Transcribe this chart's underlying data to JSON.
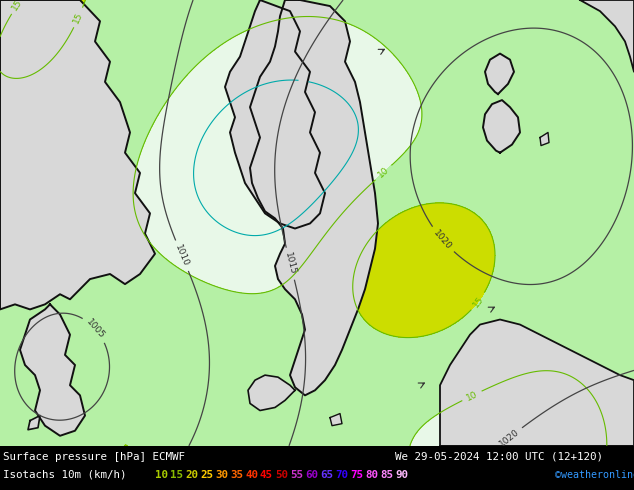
{
  "bg_color": "#b5f0a5",
  "land_color": "#d8d8d8",
  "sea_color": "#b5f0a5",
  "title_line1": "Surface pressure [hPa] ECMWF",
  "title_date": "We 29-05-2024 12:00 UTC (12+120)",
  "copyright": "©weatheronline.co.uk",
  "bottom_bg": "#000000",
  "isotach_values": [
    "10",
    "15",
    "20",
    "25",
    "30",
    "35",
    "40",
    "45",
    "50",
    "55",
    "60",
    "65",
    "70",
    "75",
    "80",
    "85",
    "90"
  ],
  "isotach_legend_colors": [
    "#aacc00",
    "#88bb00",
    "#cccc00",
    "#ffcc00",
    "#ff9900",
    "#ff6600",
    "#ff3300",
    "#ff0000",
    "#cc0000",
    "#cc33cc",
    "#9900cc",
    "#6633ff",
    "#3300ff",
    "#ff00ff",
    "#ff55ff",
    "#ff88ff",
    "#ffbbff"
  ],
  "contour_colors": {
    "isotach_green": "#66bb00",
    "isotach_yellow": "#cccc00",
    "isotach_orange": "#ff9900",
    "isotach_cyan": "#00cccc",
    "isotach_blue": "#0066ff",
    "pressure": "#333333"
  },
  "figsize": [
    6.34,
    4.9
  ],
  "dpi": 100
}
